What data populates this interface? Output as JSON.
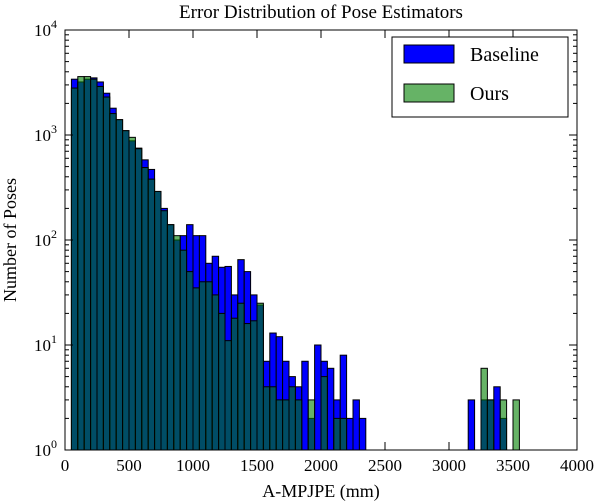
{
  "chart_data": {
    "type": "bar",
    "title": "Error Distribution of Pose Estimators",
    "xlabel": "A-MPJPE (mm)",
    "ylabel": "Number of Poses",
    "xlim": [
      0,
      4000
    ],
    "ylim": [
      1,
      10000
    ],
    "yscale": "log",
    "bin_width": 50,
    "grid": false,
    "legend_position": "top-right",
    "x_ticks": [
      "0",
      "500",
      "1000",
      "1500",
      "2000",
      "2500",
      "3000",
      "3500",
      "4000"
    ],
    "y_ticks": [
      {
        "base": "10",
        "exp": "0",
        "value": 1
      },
      {
        "base": "10",
        "exp": "1",
        "value": 10
      },
      {
        "base": "10",
        "exp": "2",
        "value": 100
      },
      {
        "base": "10",
        "exp": "3",
        "value": 1000
      },
      {
        "base": "10",
        "exp": "4",
        "value": 10000
      }
    ],
    "series": [
      {
        "name": "Baseline",
        "color": "#0000ff",
        "opacity": 1,
        "bins": [
          [
            50,
            3400
          ],
          [
            100,
            3200
          ],
          [
            150,
            3400
          ],
          [
            200,
            3500
          ],
          [
            250,
            3200
          ],
          [
            300,
            2500
          ],
          [
            350,
            1800
          ],
          [
            400,
            1400
          ],
          [
            450,
            1100
          ],
          [
            500,
            880
          ],
          [
            550,
            750
          ],
          [
            600,
            580
          ],
          [
            650,
            470
          ],
          [
            700,
            290
          ],
          [
            750,
            200
          ],
          [
            800,
            140
          ],
          [
            850,
            100
          ],
          [
            900,
            110
          ],
          [
            950,
            140
          ],
          [
            1000,
            110
          ],
          [
            1050,
            110
          ],
          [
            1100,
            60
          ],
          [
            1150,
            70
          ],
          [
            1200,
            55
          ],
          [
            1250,
            56
          ],
          [
            1300,
            30
          ],
          [
            1350,
            65
          ],
          [
            1400,
            50
          ],
          [
            1450,
            30
          ],
          [
            1500,
            24
          ],
          [
            1550,
            7
          ],
          [
            1600,
            13
          ],
          [
            1650,
            12
          ],
          [
            1700,
            7
          ],
          [
            1750,
            5
          ],
          [
            1800,
            4
          ],
          [
            1850,
            7
          ],
          [
            1900,
            2
          ],
          [
            1950,
            10
          ],
          [
            2000,
            7
          ],
          [
            2050,
            6
          ],
          [
            2100,
            3
          ],
          [
            2150,
            8
          ],
          [
            2200,
            2
          ],
          [
            2250,
            3
          ],
          [
            2300,
            2
          ],
          [
            2350,
            1
          ],
          [
            2400,
            0
          ],
          [
            2450,
            0
          ],
          [
            2500,
            0
          ],
          [
            2550,
            0
          ],
          [
            2600,
            0
          ],
          [
            2650,
            0
          ],
          [
            2700,
            0
          ],
          [
            2750,
            0
          ],
          [
            2800,
            0
          ],
          [
            2850,
            0
          ],
          [
            2900,
            0
          ],
          [
            2950,
            0
          ],
          [
            3000,
            0
          ],
          [
            3050,
            0
          ],
          [
            3100,
            0
          ],
          [
            3150,
            3
          ],
          [
            3200,
            0
          ],
          [
            3250,
            3
          ],
          [
            3300,
            3
          ],
          [
            3350,
            4
          ],
          [
            3400,
            2
          ],
          [
            3450,
            0
          ],
          [
            3500,
            0
          ],
          [
            3550,
            0
          ]
        ]
      },
      {
        "name": "Ours",
        "color": "#008000",
        "opacity": 0.6,
        "bins": [
          [
            50,
            2800
          ],
          [
            100,
            3600
          ],
          [
            150,
            3600
          ],
          [
            200,
            3400
          ],
          [
            250,
            2900
          ],
          [
            300,
            2300
          ],
          [
            350,
            1600
          ],
          [
            400,
            1400
          ],
          [
            450,
            1100
          ],
          [
            500,
            950
          ],
          [
            550,
            740
          ],
          [
            600,
            490
          ],
          [
            650,
            380
          ],
          [
            700,
            290
          ],
          [
            750,
            190
          ],
          [
            800,
            140
          ],
          [
            850,
            110
          ],
          [
            900,
            80
          ],
          [
            950,
            50
          ],
          [
            1000,
            35
          ],
          [
            1050,
            40
          ],
          [
            1100,
            40
          ],
          [
            1150,
            30
          ],
          [
            1200,
            20
          ],
          [
            1250,
            11
          ],
          [
            1300,
            18
          ],
          [
            1350,
            25
          ],
          [
            1400,
            16
          ],
          [
            1450,
            17
          ],
          [
            1500,
            25
          ],
          [
            1550,
            4
          ],
          [
            1600,
            4
          ],
          [
            1650,
            3
          ],
          [
            1700,
            3
          ],
          [
            1750,
            4
          ],
          [
            1800,
            3
          ],
          [
            1850,
            1
          ],
          [
            1900,
            3
          ],
          [
            1950,
            1
          ],
          [
            2000,
            5
          ],
          [
            2050,
            1
          ],
          [
            2100,
            2
          ],
          [
            2150,
            2
          ],
          [
            2200,
            0
          ],
          [
            2250,
            0
          ],
          [
            2300,
            0
          ],
          [
            2350,
            0
          ],
          [
            2400,
            0
          ],
          [
            2450,
            0
          ],
          [
            2500,
            0
          ],
          [
            2550,
            0
          ],
          [
            2600,
            0
          ],
          [
            2650,
            0
          ],
          [
            2700,
            0
          ],
          [
            2750,
            0
          ],
          [
            2800,
            0
          ],
          [
            2850,
            0
          ],
          [
            2900,
            0
          ],
          [
            2950,
            0
          ],
          [
            3000,
            0
          ],
          [
            3050,
            0
          ],
          [
            3100,
            0
          ],
          [
            3150,
            0
          ],
          [
            3200,
            0
          ],
          [
            3250,
            6
          ],
          [
            3300,
            3
          ],
          [
            3350,
            0
          ],
          [
            3400,
            3
          ],
          [
            3450,
            0
          ],
          [
            3500,
            3
          ],
          [
            3550,
            0
          ]
        ]
      }
    ]
  }
}
